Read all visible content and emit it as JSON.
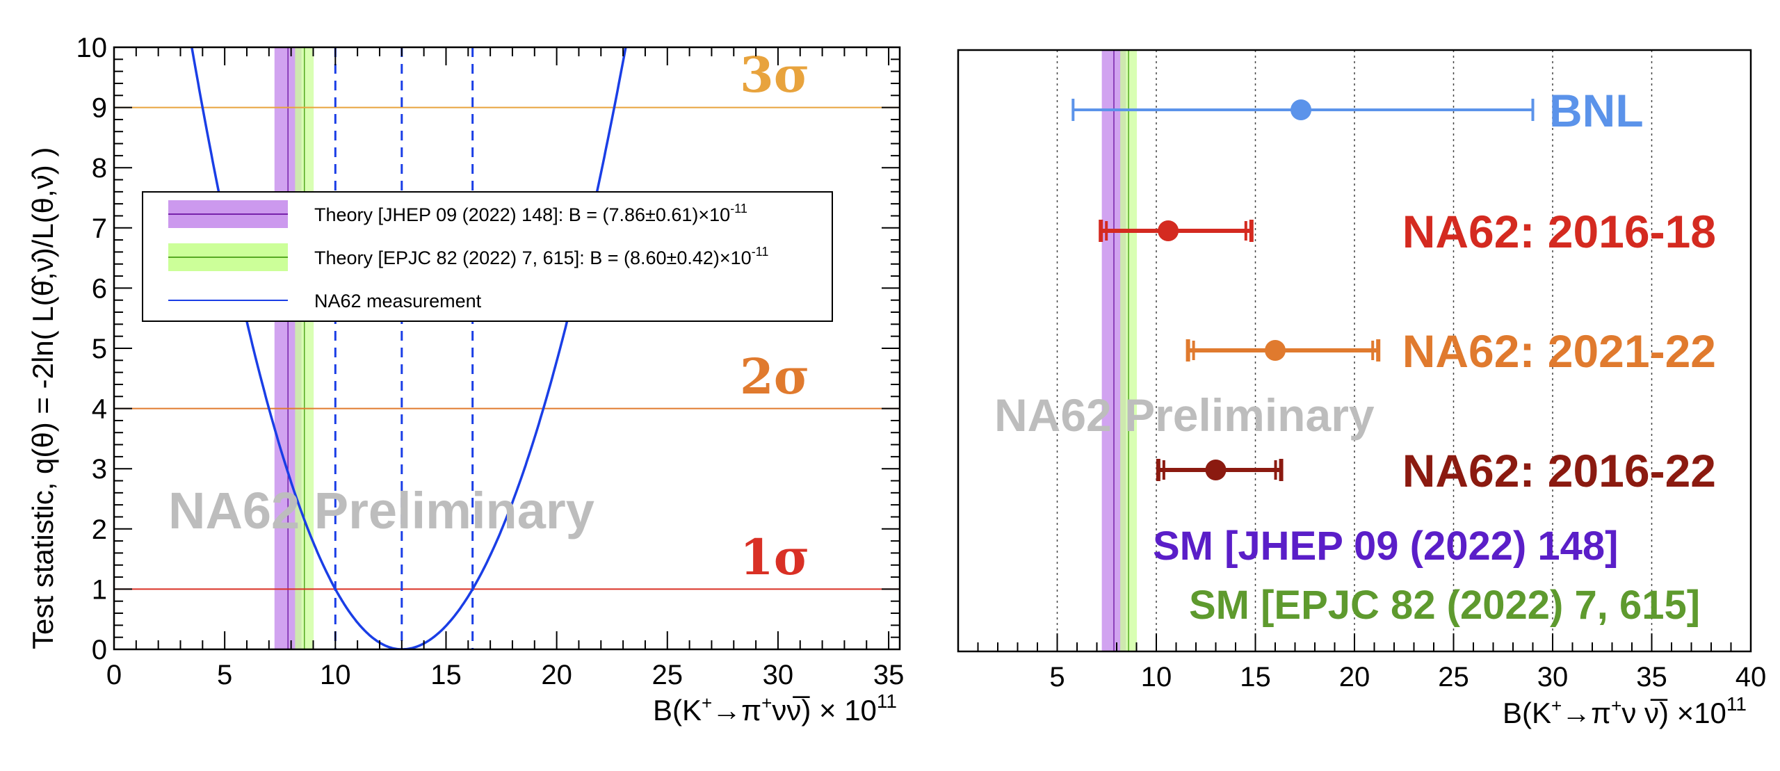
{
  "left_panel": {
    "preliminary": "NA62 Preliminary",
    "legend": [
      {
        "text": "Theory [JHEP 09 (2022) 148]: B = (7.86±0.61)×10",
        "exp": "-11",
        "fill": "#cc99ee",
        "line": "#7722aa"
      },
      {
        "text": "Theory [EPJC 82 (2022) 7, 615]: B = (8.60±0.42)×10",
        "exp": "-11",
        "fill": "#ccff99",
        "line": "#55aa22"
      },
      {
        "text": "NA62 measurement",
        "exp": "",
        "fill": "none",
        "line": "#1a3ee6"
      }
    ]
  },
  "right_panel": {
    "preliminary": "NA62 Preliminary",
    "sm_labels": [
      {
        "text": "SM [JHEP 09 (2022) 148]",
        "color": "#5a1ec8"
      },
      {
        "text": "SM [EPJC 82 (2022) 7, 615]",
        "color": "#5e9a2e"
      }
    ]
  },
  "colors": {
    "jhep_band": "#cc99ee",
    "jhep_line": "#7722aa",
    "epjc_band": "#ccff99",
    "epjc_line": "#55aa22",
    "na62_curve": "#1a3ee6",
    "sigma3": "#e8a33d",
    "sigma2": "#e07a2e",
    "sigma1": "#d93025"
  },
  "chart_data": [
    {
      "type": "line",
      "title": "",
      "xlabel_main": "B(K",
      "xlabel_sup1": "+",
      "xlabel_mid": "→π",
      "xlabel_sup2": "+",
      "xlabel_end": "νν̅) × 10",
      "xlabel_exp": "11",
      "ylabel": "Test statistic, q(θ) = -2ln( L(θ̂,ν̂)/L(θ,ν̂) )",
      "xlim": [
        0,
        35.5
      ],
      "ylim": [
        0,
        10
      ],
      "xticks": [
        0,
        5,
        10,
        15,
        20,
        25,
        30,
        35
      ],
      "yticks": [
        0,
        1,
        2,
        3,
        4,
        5,
        6,
        7,
        8,
        9,
        10
      ],
      "series": [
        {
          "name": "NA62 measurement",
          "min_x": 13.0,
          "x_at_q1": [
            10.0,
            16.2
          ]
        }
      ],
      "bands": [
        {
          "center": 7.86,
          "error": 0.61
        },
        {
          "center": 8.6,
          "error": 0.42
        }
      ],
      "vlines_dashed": [
        10.0,
        13.0,
        16.2
      ],
      "sigma_lines": [
        {
          "label": "1σ",
          "q": 1
        },
        {
          "label": "2σ",
          "q": 4
        },
        {
          "label": "3σ",
          "q": 9
        }
      ]
    },
    {
      "type": "scatter",
      "title": "",
      "xlabel_main": "B(K",
      "xlabel_sup1": "+",
      "xlabel_mid": "→π",
      "xlabel_sup2": "+",
      "xlabel_end": "ν ν̅) ×10",
      "xlabel_exp": "11",
      "xlim": [
        0,
        40
      ],
      "xticks": [
        5,
        10,
        15,
        20,
        25,
        30,
        35,
        40
      ],
      "grid": "vertical dotted",
      "measurements": [
        {
          "name": "BNL",
          "value": 17.3,
          "low": 5.8,
          "high": 29.0,
          "color": "#5b93ea"
        },
        {
          "name": "NA62: 2016-18",
          "value": 10.6,
          "low": 7.2,
          "high": 14.8,
          "color": "#d42a20"
        },
        {
          "name": "NA62: 2021-22",
          "value": 16.0,
          "low": 11.6,
          "high": 21.2,
          "color": "#e07a2e"
        },
        {
          "name": "NA62: 2016-22",
          "value": 13.0,
          "low": 10.1,
          "high": 16.3,
          "color": "#8b1a10"
        }
      ],
      "bands": [
        {
          "center": 7.86,
          "error": 0.61
        },
        {
          "center": 8.6,
          "error": 0.42
        }
      ]
    }
  ]
}
